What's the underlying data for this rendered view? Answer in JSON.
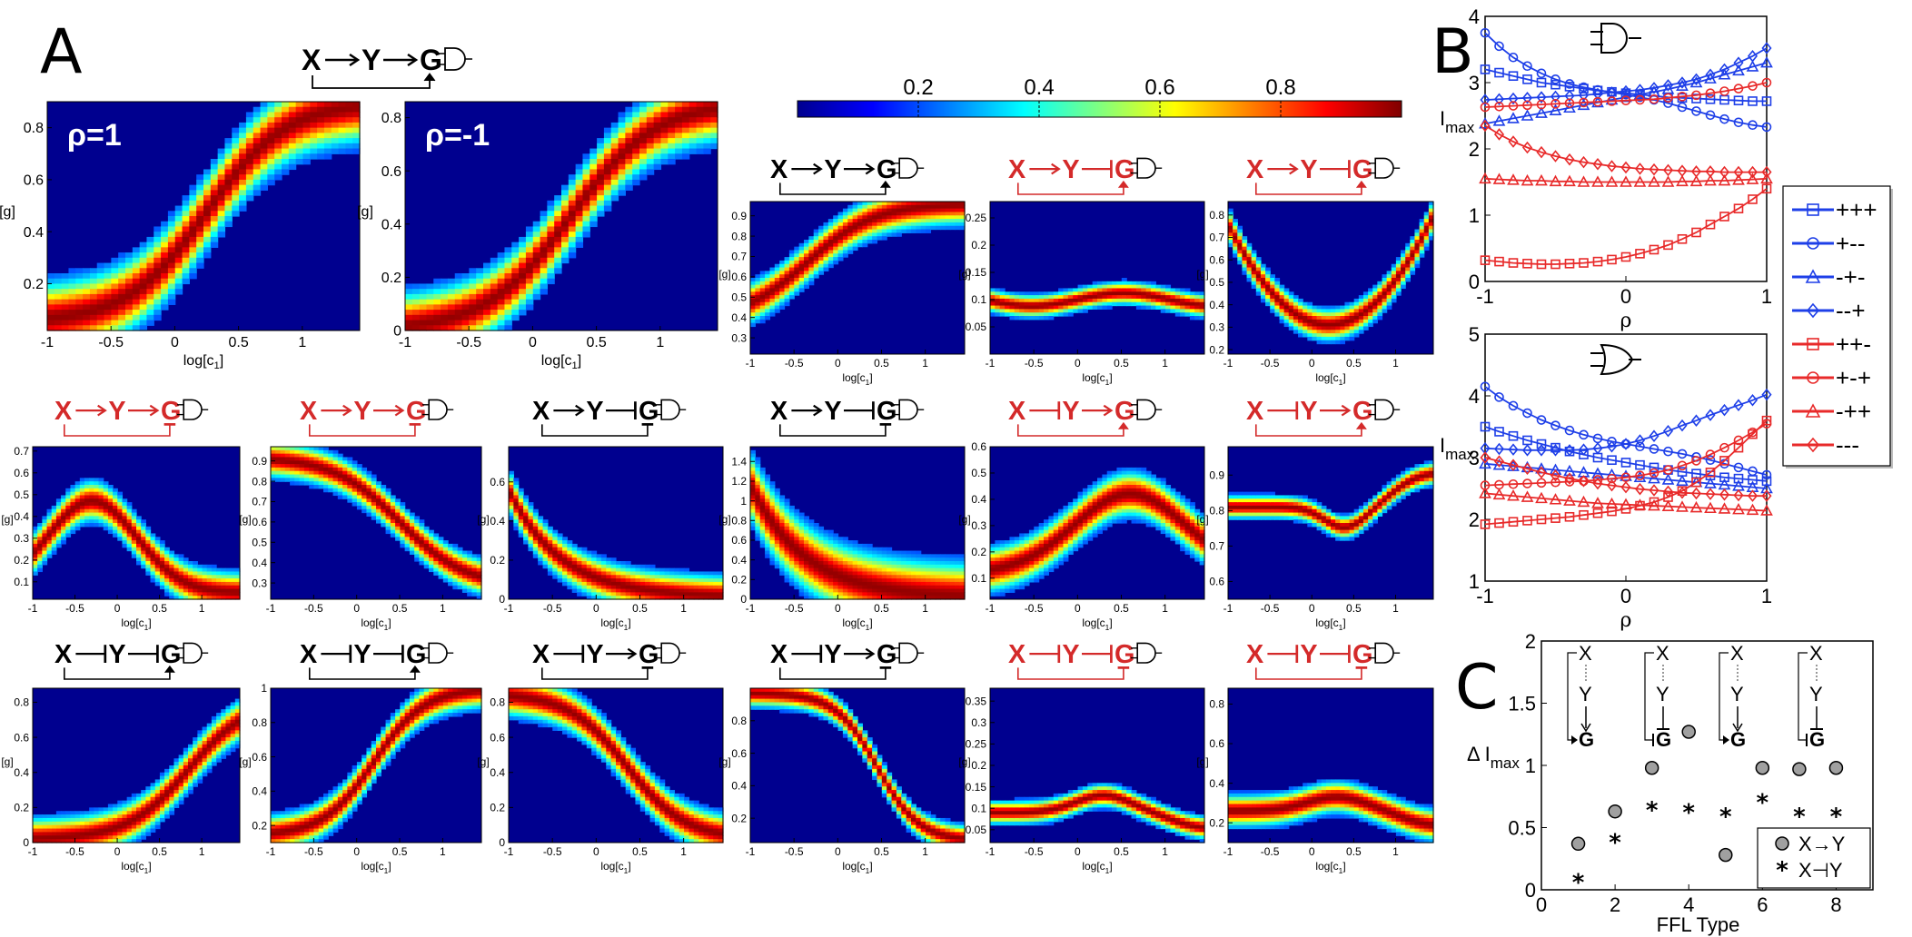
{
  "panels": {
    "A": "A",
    "B": "B",
    "C": "C"
  },
  "colorbar": {
    "ticks": [
      "0.2",
      "0.4",
      "0.6",
      "0.8"
    ],
    "range": [
      0,
      1
    ]
  },
  "axis_labels": {
    "x_heat": "log[c",
    "x_heat_sub": "1",
    "x_heat_close": "]",
    "y_heat": "[g]",
    "rho": "ρ",
    "imax": "I",
    "imax_sub": "max",
    "delta": "Δ I",
    "ffl_type": "FFL Type"
  },
  "heatmaps": [
    {
      "label": "ρ=1",
      "circuit": {
        "xy": "act",
        "yg": "act",
        "xg": "act",
        "color": "#000000",
        "gate": "AND"
      },
      "ylim": [
        0.02,
        0.9
      ],
      "yticks": [
        "0.2",
        "0.4",
        "0.6",
        "0.8"
      ],
      "curve": "sigmoid_up",
      "width": 0.11
    },
    {
      "label": "ρ=-1",
      "circuit": null,
      "ylim": [
        0,
        0.86
      ],
      "yticks": [
        "0",
        "0.2",
        "0.4",
        "0.6",
        "0.8"
      ],
      "curve": "sigmoid_up2",
      "width": 0.1
    },
    {
      "circuit": {
        "xy": "act",
        "yg": "act",
        "xg": "act",
        "color": "#000000",
        "gate": "AND"
      },
      "ylim": [
        0.22,
        0.97
      ],
      "yticks": [
        "0.3",
        "0.4",
        "0.5",
        "0.6",
        "0.7",
        "0.8",
        "0.9"
      ],
      "curve": "sat_up",
      "width": 0.09
    },
    {
      "circuit": {
        "xy": "act",
        "yg": "rep",
        "xg": "act",
        "color": "#d42a2a",
        "gate": "AND"
      },
      "ylim": [
        0,
        0.28
      ],
      "yticks": [
        "0.05",
        "0.1",
        "0.15",
        "0.2",
        "0.25"
      ],
      "curve": "flat_band",
      "width": 0.05
    },
    {
      "circuit": {
        "xy": "act",
        "yg": "rep",
        "xg": "act",
        "color": "#d42a2a",
        "gate": "AND"
      },
      "ylim": [
        0.18,
        0.86
      ],
      "yticks": [
        "0.2",
        "0.3",
        "0.4",
        "0.5",
        "0.6",
        "0.7",
        "0.8"
      ],
      "curve": "valley",
      "width": 0.07
    },
    {
      "circuit": {
        "xy": "act",
        "yg": "act",
        "xg": "rep",
        "color": "#d42a2a",
        "gate": "AND"
      },
      "ylim": [
        0.02,
        0.72
      ],
      "yticks": [
        "0.1",
        "0.2",
        "0.3",
        "0.4",
        "0.5",
        "0.6",
        "0.7"
      ],
      "curve": "hump",
      "width": 0.09
    },
    {
      "circuit": {
        "xy": "act",
        "yg": "act",
        "xg": "rep",
        "color": "#d42a2a",
        "gate": "AND"
      },
      "ylim": [
        0.22,
        0.97
      ],
      "yticks": [
        "0.3",
        "0.4",
        "0.5",
        "0.6",
        "0.7",
        "0.8",
        "0.9"
      ],
      "curve": "sigmoid_down_hi",
      "width": 0.08
    },
    {
      "circuit": {
        "xy": "act",
        "yg": "rep",
        "xg": "rep",
        "color": "#000000",
        "gate": "AND"
      },
      "ylim": [
        0,
        0.78
      ],
      "yticks": [
        "0",
        "0.2",
        "0.4",
        "0.6"
      ],
      "curve": "decay",
      "width": 0.09
    },
    {
      "circuit": {
        "xy": "act",
        "yg": "rep",
        "xg": "rep",
        "color": "#000000",
        "gate": "AND"
      },
      "ylim": [
        0,
        1.55
      ],
      "yticks": [
        "0",
        "0.2",
        "0.4",
        "0.6",
        "0.8",
        "1",
        "1.2",
        "1.4"
      ],
      "curve": "decay2",
      "width": 0.15
    },
    {
      "circuit": {
        "xy": "rep",
        "yg": "act",
        "xg": "act",
        "color": "#d42a2a",
        "gate": "AND"
      },
      "ylim": [
        0.02,
        0.6
      ],
      "yticks": [
        "0.1",
        "0.2",
        "0.3",
        "0.4",
        "0.5",
        "0.6"
      ],
      "curve": "broad_hump",
      "width": 0.1
    },
    {
      "circuit": {
        "xy": "rep",
        "yg": "act",
        "xg": "act",
        "color": "#d42a2a",
        "gate": "AND"
      },
      "ylim": [
        0.55,
        0.98
      ],
      "yticks": [
        "0.6",
        "0.7",
        "0.8",
        "0.9"
      ],
      "curve": "dip",
      "width": 0.05
    },
    {
      "circuit": {
        "xy": "rep",
        "yg": "rep",
        "xg": "act",
        "color": "#000000",
        "gate": "AND"
      },
      "ylim": [
        0,
        0.88
      ],
      "yticks": [
        "0",
        "0.2",
        "0.4",
        "0.6",
        "0.8"
      ],
      "curve": "rise_late",
      "width": 0.09
    },
    {
      "circuit": {
        "xy": "rep",
        "yg": "rep",
        "xg": "act",
        "color": "#000000",
        "gate": "AND"
      },
      "ylim": [
        0.1,
        1
      ],
      "yticks": [
        "0.2",
        "0.4",
        "0.6",
        "0.8",
        "1"
      ],
      "curve": "sigmoid_up3",
      "width": 0.08
    },
    {
      "circuit": {
        "xy": "rep",
        "yg": "act",
        "xg": "rep",
        "color": "#000000",
        "gate": "AND"
      },
      "ylim": [
        0,
        0.88
      ],
      "yticks": [
        "0",
        "0.2",
        "0.4",
        "0.6",
        "0.8"
      ],
      "curve": "sigmoid_down",
      "width": 0.09
    },
    {
      "circuit": {
        "xy": "rep",
        "yg": "act",
        "xg": "rep",
        "color": "#000000",
        "gate": "AND"
      },
      "ylim": [
        0.05,
        1
      ],
      "yticks": [
        "0.2",
        "0.4",
        "0.6",
        "0.8"
      ],
      "curve": "sigmoid_down2",
      "width": 0.06
    },
    {
      "circuit": {
        "xy": "rep",
        "yg": "rep",
        "xg": "rep",
        "color": "#d42a2a",
        "gate": "AND"
      },
      "ylim": [
        0.02,
        0.38
      ],
      "yticks": [
        "0.05",
        "0.1",
        "0.15",
        "0.2",
        "0.25",
        "0.3",
        "0.35"
      ],
      "curve": "low_hump",
      "width": 0.05
    },
    {
      "circuit": {
        "xy": "rep",
        "yg": "rep",
        "xg": "rep",
        "color": "#d42a2a",
        "gate": "AND"
      },
      "ylim": [
        0.1,
        0.88
      ],
      "yticks": [
        "0.2",
        "0.4",
        "0.6",
        "0.8"
      ],
      "curve": "low_hump2",
      "width": 0.07
    }
  ],
  "heat_xticks": [
    "-1",
    "-0.5",
    "0",
    "0.5",
    "1"
  ],
  "chart_data": [
    {
      "type": "line",
      "title": "B (AND gate)",
      "xlabel": "ρ",
      "ylabel": "Imax",
      "xlim": [
        -1,
        1
      ],
      "ylim": [
        0,
        4
      ],
      "xticks": [
        "-1",
        "0",
        "1"
      ],
      "yticks": [
        "0",
        "1",
        "2",
        "3",
        "4"
      ],
      "x": [
        -1,
        -0.9,
        -0.8,
        -0.7,
        -0.6,
        -0.5,
        -0.4,
        -0.3,
        -0.2,
        -0.1,
        0,
        0.1,
        0.2,
        0.3,
        0.4,
        0.5,
        0.6,
        0.7,
        0.8,
        0.9,
        1
      ],
      "series": [
        {
          "name": "+++",
          "color": "#1e3fe8",
          "marker": "square",
          "values": [
            3.2,
            3.15,
            3.1,
            3.05,
            3.0,
            2.97,
            2.94,
            2.91,
            2.88,
            2.86,
            2.84,
            2.82,
            2.8,
            2.78,
            2.77,
            2.76,
            2.75,
            2.74,
            2.73,
            2.72,
            2.72
          ]
        },
        {
          "name": "+--",
          "color": "#1e3fe8",
          "marker": "circle",
          "values": [
            3.75,
            3.55,
            3.38,
            3.25,
            3.14,
            3.05,
            2.98,
            2.93,
            2.89,
            2.85,
            2.82,
            2.78,
            2.74,
            2.69,
            2.63,
            2.57,
            2.51,
            2.45,
            2.4,
            2.36,
            2.33
          ]
        },
        {
          "name": "-+-",
          "color": "#1e3fe8",
          "marker": "triangle",
          "values": [
            2.38,
            2.42,
            2.46,
            2.5,
            2.54,
            2.58,
            2.62,
            2.66,
            2.7,
            2.74,
            2.78,
            2.82,
            2.86,
            2.9,
            2.95,
            3.0,
            3.06,
            3.12,
            3.18,
            3.24,
            3.3
          ]
        },
        {
          "name": "--+",
          "color": "#1e3fe8",
          "marker": "diamond",
          "values": [
            2.74,
            2.75,
            2.76,
            2.77,
            2.78,
            2.79,
            2.8,
            2.81,
            2.83,
            2.85,
            2.87,
            2.89,
            2.92,
            2.96,
            3.0,
            3.05,
            3.12,
            3.2,
            3.3,
            3.4,
            3.52
          ]
        },
        {
          "name": "++-",
          "color": "#e82a2a",
          "marker": "square",
          "values": [
            0.32,
            0.3,
            0.28,
            0.27,
            0.26,
            0.26,
            0.27,
            0.28,
            0.3,
            0.33,
            0.37,
            0.42,
            0.48,
            0.55,
            0.64,
            0.74,
            0.86,
            0.98,
            1.1,
            1.24,
            1.4
          ]
        },
        {
          "name": "+-+",
          "color": "#e82a2a",
          "marker": "circle",
          "values": [
            2.63,
            2.64,
            2.65,
            2.66,
            2.67,
            2.68,
            2.69,
            2.7,
            2.71,
            2.72,
            2.73,
            2.74,
            2.75,
            2.77,
            2.79,
            2.81,
            2.84,
            2.87,
            2.91,
            2.95,
            3.0
          ]
        },
        {
          "name": "-++",
          "color": "#e82a2a",
          "marker": "triangle",
          "values": [
            1.55,
            1.54,
            1.53,
            1.52,
            1.52,
            1.51,
            1.51,
            1.5,
            1.5,
            1.5,
            1.5,
            1.5,
            1.5,
            1.5,
            1.51,
            1.51,
            1.52,
            1.52,
            1.53,
            1.54,
            1.55
          ]
        },
        {
          "name": "---",
          "color": "#e82a2a",
          "marker": "diamond",
          "values": [
            2.35,
            2.22,
            2.11,
            2.02,
            1.95,
            1.89,
            1.84,
            1.8,
            1.77,
            1.74,
            1.72,
            1.7,
            1.69,
            1.68,
            1.67,
            1.66,
            1.66,
            1.65,
            1.65,
            1.65,
            1.65
          ]
        }
      ]
    },
    {
      "type": "line",
      "title": "B (OR gate)",
      "xlabel": "ρ",
      "ylabel": "Imax",
      "xlim": [
        -1,
        1
      ],
      "ylim": [
        1,
        5
      ],
      "xticks": [
        "-1",
        "0",
        "1"
      ],
      "yticks": [
        "1",
        "2",
        "3",
        "4",
        "5"
      ],
      "x": [
        -1,
        -0.9,
        -0.8,
        -0.7,
        -0.6,
        -0.5,
        -0.4,
        -0.3,
        -0.2,
        -0.1,
        0,
        0.1,
        0.2,
        0.3,
        0.4,
        0.5,
        0.6,
        0.7,
        0.8,
        0.9,
        1
      ],
      "series": [
        {
          "name": "+++",
          "color": "#1e3fe8",
          "marker": "square",
          "values": [
            3.5,
            3.42,
            3.35,
            3.28,
            3.22,
            3.16,
            3.1,
            3.05,
            3.0,
            2.96,
            2.92,
            2.88,
            2.84,
            2.8,
            2.77,
            2.74,
            2.71,
            2.68,
            2.66,
            2.64,
            2.62
          ]
        },
        {
          "name": "+--",
          "color": "#1e3fe8",
          "marker": "circle",
          "values": [
            4.15,
            3.98,
            3.84,
            3.72,
            3.61,
            3.52,
            3.44,
            3.37,
            3.31,
            3.26,
            3.22,
            3.18,
            3.14,
            3.1,
            3.06,
            3.01,
            2.96,
            2.9,
            2.84,
            2.78,
            2.72
          ]
        },
        {
          "name": "-+-",
          "color": "#1e3fe8",
          "marker": "triangle",
          "values": [
            2.9,
            2.88,
            2.86,
            2.84,
            2.82,
            2.8,
            2.78,
            2.76,
            2.74,
            2.72,
            2.7,
            2.68,
            2.66,
            2.64,
            2.62,
            2.6,
            2.58,
            2.56,
            2.54,
            2.52,
            2.5
          ]
        },
        {
          "name": "--+",
          "color": "#1e3fe8",
          "marker": "diamond",
          "values": [
            3.15,
            3.14,
            3.13,
            3.12,
            3.12,
            3.12,
            3.12,
            3.13,
            3.15,
            3.18,
            3.22,
            3.28,
            3.35,
            3.43,
            3.52,
            3.6,
            3.69,
            3.77,
            3.85,
            3.93,
            4.02
          ]
        },
        {
          "name": "++-",
          "color": "#e82a2a",
          "marker": "square",
          "values": [
            1.92,
            1.94,
            1.96,
            1.98,
            2.0,
            2.02,
            2.04,
            2.07,
            2.1,
            2.13,
            2.17,
            2.22,
            2.28,
            2.36,
            2.46,
            2.6,
            2.76,
            2.95,
            3.16,
            3.38,
            3.6
          ]
        },
        {
          "name": "+-+",
          "color": "#e82a2a",
          "marker": "circle",
          "values": [
            2.55,
            2.56,
            2.57,
            2.58,
            2.59,
            2.6,
            2.61,
            2.62,
            2.64,
            2.66,
            2.68,
            2.71,
            2.75,
            2.8,
            2.87,
            2.95,
            3.05,
            3.16,
            3.28,
            3.41,
            3.55
          ]
        },
        {
          "name": "-++",
          "color": "#e82a2a",
          "marker": "triangle",
          "values": [
            2.42,
            2.4,
            2.38,
            2.36,
            2.34,
            2.32,
            2.3,
            2.28,
            2.26,
            2.25,
            2.24,
            2.23,
            2.22,
            2.21,
            2.2,
            2.19,
            2.18,
            2.17,
            2.16,
            2.15,
            2.14
          ]
        },
        {
          "name": "---",
          "color": "#e82a2a",
          "marker": "diamond",
          "values": [
            3.0,
            2.94,
            2.88,
            2.82,
            2.76,
            2.71,
            2.66,
            2.62,
            2.58,
            2.55,
            2.52,
            2.49,
            2.47,
            2.45,
            2.43,
            2.42,
            2.41,
            2.4,
            2.39,
            2.38,
            2.38
          ]
        }
      ]
    },
    {
      "type": "scatter",
      "title": "C",
      "xlabel": "FFL Type",
      "ylabel": "Δ Imax",
      "xlim": [
        0,
        9
      ],
      "ylim": [
        0,
        2
      ],
      "xticks": [
        "0",
        "2",
        "4",
        "6",
        "8"
      ],
      "yticks": [
        "0",
        "0.5",
        "1",
        "1.5",
        "2"
      ],
      "series": [
        {
          "name": "X→Y",
          "marker": "grey-circle",
          "x": [
            1,
            2,
            3,
            4,
            5,
            6,
            7,
            8
          ],
          "values": [
            0.37,
            0.63,
            0.98,
            1.27,
            0.28,
            0.98,
            0.97,
            0.98
          ]
        },
        {
          "name": "X⊣Y",
          "marker": "asterisk",
          "x": [
            1,
            2,
            3,
            4,
            5,
            6,
            7,
            8
          ],
          "values": [
            0.07,
            0.39,
            0.65,
            0.63,
            0.6,
            0.71,
            0.6,
            0.6
          ]
        }
      ],
      "insets": [
        "X",
        "Y",
        "G",
        "X",
        "Y",
        "G",
        "X",
        "Y",
        "G",
        "X",
        "Y",
        "G"
      ]
    }
  ]
}
